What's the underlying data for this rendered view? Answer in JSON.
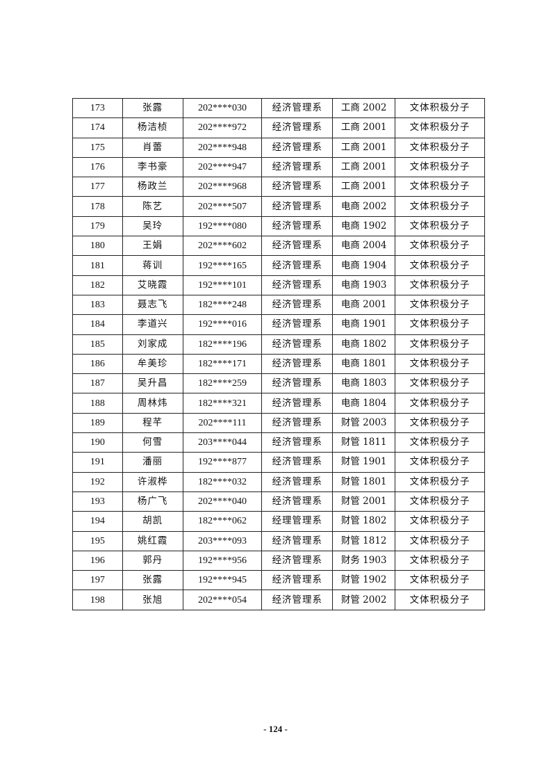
{
  "table": {
    "rows": [
      [
        "173",
        "张露",
        "202****030",
        "经济管理系",
        "工商 2002",
        "文体积极分子"
      ],
      [
        "174",
        "杨洁桢",
        "202****972",
        "经济管理系",
        "工商 2001",
        "文体积极分子"
      ],
      [
        "175",
        "肖蕾",
        "202****948",
        "经济管理系",
        "工商 2001",
        "文体积极分子"
      ],
      [
        "176",
        "李书豪",
        "202****947",
        "经济管理系",
        "工商 2001",
        "文体积极分子"
      ],
      [
        "177",
        "杨政兰",
        "202****968",
        "经济管理系",
        "工商 2001",
        "文体积极分子"
      ],
      [
        "178",
        "陈艺",
        "202****507",
        "经济管理系",
        "电商 2002",
        "文体积极分子"
      ],
      [
        "179",
        "吴玲",
        "192****080",
        "经济管理系",
        "电商 1902",
        "文体积极分子"
      ],
      [
        "180",
        "王娟",
        "202****602",
        "经济管理系",
        "电商 2004",
        "文体积极分子"
      ],
      [
        "181",
        "蒋训",
        "192****165",
        "经济管理系",
        "电商 1904",
        "文体积极分子"
      ],
      [
        "182",
        "艾晓霞",
        "192****101",
        "经济管理系",
        "电商 1903",
        "文体积极分子"
      ],
      [
        "183",
        "聂志飞",
        "182****248",
        "经济管理系",
        "电商 2001",
        "文体积极分子"
      ],
      [
        "184",
        "李道兴",
        "192****016",
        "经济管理系",
        "电商 1901",
        "文体积极分子"
      ],
      [
        "185",
        "刘家成",
        "182****196",
        "经济管理系",
        "电商 1802",
        "文体积极分子"
      ],
      [
        "186",
        "牟美珍",
        "182****171",
        "经济管理系",
        "电商 1801",
        "文体积极分子"
      ],
      [
        "187",
        "吴升昌",
        "182****259",
        "经济管理系",
        "电商 1803",
        "文体积极分子"
      ],
      [
        "188",
        "周林炜",
        "182****321",
        "经济管理系",
        "电商 1804",
        "文体积极分子"
      ],
      [
        "189",
        "程芊",
        "202****111",
        "经济管理系",
        "财管 2003",
        "文体积极分子"
      ],
      [
        "190",
        "何雪",
        "203****044",
        "经济管理系",
        "财管 1811",
        "文体积极分子"
      ],
      [
        "191",
        "潘丽",
        "192****877",
        "经济管理系",
        "财管 1901",
        "文体积极分子"
      ],
      [
        "192",
        "许淑桦",
        "182****032",
        "经济管理系",
        "财管 1801",
        "文体积极分子"
      ],
      [
        "193",
        "杨广飞",
        "202****040",
        "经济管理系",
        "财管 2001",
        "文体积极分子"
      ],
      [
        "194",
        "胡凯",
        "182****062",
        "经理管理系",
        "财管 1802",
        "文体积极分子"
      ],
      [
        "195",
        "姚红霞",
        "203****093",
        "经济管理系",
        "财管 1812",
        "文体积极分子"
      ],
      [
        "196",
        "郭丹",
        "192****956",
        "经济管理系",
        "财务 1903",
        "文体积极分子"
      ],
      [
        "197",
        "张露",
        "192****945",
        "经济管理系",
        "财管 1902",
        "文体积极分子"
      ],
      [
        "198",
        "张旭",
        "202****054",
        "经济管理系",
        "财管 2002",
        "文体积极分子"
      ]
    ]
  },
  "footer": {
    "page_number": "- 124 -"
  }
}
